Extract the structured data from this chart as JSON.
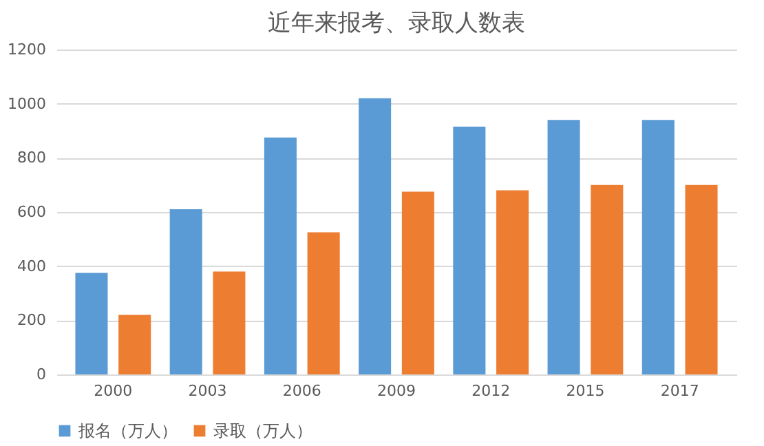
{
  "chart_data": {
    "type": "bar",
    "title": "近年来报考、录取人数表",
    "categories": [
      "2000",
      "2003",
      "2006",
      "2009",
      "2012",
      "2015",
      "2017"
    ],
    "series": [
      {
        "name": "报名（万人）",
        "color": "#5b9bd5",
        "values": [
          375,
          610,
          875,
          1020,
          915,
          940,
          940
        ]
      },
      {
        "name": "录取（万人）",
        "color": "#ed7d31",
        "values": [
          220,
          380,
          525,
          675,
          680,
          700,
          700
        ]
      }
    ],
    "ylim": [
      0,
      1200
    ],
    "yticks": [
      0,
      200,
      400,
      600,
      800,
      1000,
      1200
    ],
    "grid": "y",
    "legend": "bottom"
  }
}
